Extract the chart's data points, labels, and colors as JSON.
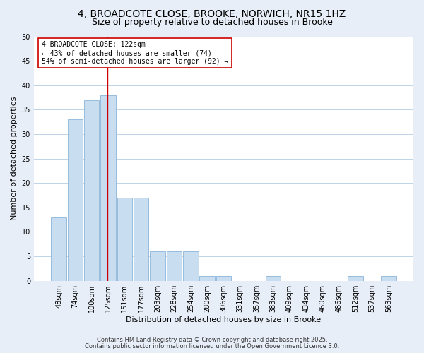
{
  "title1": "4, BROADCOTE CLOSE, BROOKE, NORWICH, NR15 1HZ",
  "title2": "Size of property relative to detached houses in Brooke",
  "xlabel": "Distribution of detached houses by size in Brooke",
  "ylabel": "Number of detached properties",
  "categories": [
    "48sqm",
    "74sqm",
    "100sqm",
    "125sqm",
    "151sqm",
    "177sqm",
    "203sqm",
    "228sqm",
    "254sqm",
    "280sqm",
    "306sqm",
    "331sqm",
    "357sqm",
    "383sqm",
    "409sqm",
    "434sqm",
    "460sqm",
    "486sqm",
    "512sqm",
    "537sqm",
    "563sqm"
  ],
  "values": [
    13,
    33,
    37,
    38,
    17,
    17,
    6,
    6,
    6,
    1,
    1,
    0,
    0,
    1,
    0,
    0,
    0,
    0,
    1,
    0,
    1
  ],
  "bar_color": "#c8ddf0",
  "bar_edge_color": "#8ab4d8",
  "grid_color": "#c0d4e8",
  "background_color": "#ffffff",
  "fig_background_color": "#e8eef8",
  "vline_x_index": 2.9,
  "vline_color": "#cc0000",
  "annotation_text": "4 BROADCOTE CLOSE: 122sqm\n← 43% of detached houses are smaller (74)\n54% of semi-detached houses are larger (92) →",
  "annotation_box_color": "#ffffff",
  "annotation_box_edge_color": "#cc0000",
  "ylim": [
    0,
    50
  ],
  "yticks": [
    0,
    5,
    10,
    15,
    20,
    25,
    30,
    35,
    40,
    45,
    50
  ],
  "footnote1": "Contains HM Land Registry data © Crown copyright and database right 2025.",
  "footnote2": "Contains public sector information licensed under the Open Government Licence 3.0.",
  "title_fontsize": 10,
  "subtitle_fontsize": 9,
  "axis_label_fontsize": 8,
  "tick_fontsize": 7,
  "annotation_fontsize": 7,
  "footnote_fontsize": 6
}
